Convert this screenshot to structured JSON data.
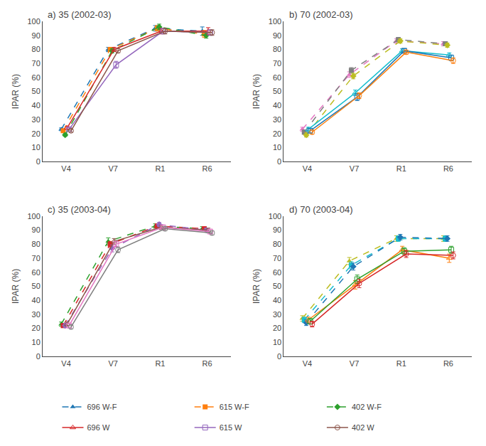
{
  "chart_data": [
    {
      "type": "line",
      "title": "a) 35 (2002-03)",
      "y_label": "IPAR (%)",
      "categories": [
        "V4",
        "V7",
        "R1",
        "R6"
      ],
      "ylim": [
        0,
        100
      ],
      "yticks": [
        0,
        10,
        20,
        30,
        40,
        50,
        60,
        70,
        80,
        90,
        100
      ],
      "grid": false,
      "legend": "bottom",
      "series": [
        {
          "name": "696 W-F",
          "values": [
            23,
            80,
            95,
            93
          ],
          "errors": [
            1.0,
            1.5,
            2.0,
            3.0
          ],
          "marker": "triangle-up",
          "line_style": "dashed"
        },
        {
          "name": "615 W-F",
          "values": [
            22,
            80,
            95,
            91
          ],
          "errors": [
            1.0,
            1.5,
            2.0,
            2.5
          ],
          "marker": "square",
          "line_style": "dashed"
        },
        {
          "name": "402 W-F",
          "values": [
            19,
            79,
            96,
            90
          ],
          "errors": [
            1.0,
            1.5,
            2.0,
            2.0
          ],
          "marker": "diamond",
          "line_style": "dashed"
        },
        {
          "name": "696 W",
          "values": [
            24,
            80,
            93,
            93
          ],
          "errors": [
            1.0,
            1.5,
            2.0,
            2.5
          ],
          "marker": "triangle-up-open",
          "line_style": "solid"
        },
        {
          "name": "615 W",
          "values": [
            23,
            69,
            93,
            92
          ],
          "errors": [
            1.0,
            2.5,
            2.0,
            2.0
          ],
          "marker": "square-open",
          "line_style": "solid"
        },
        {
          "name": "402 W",
          "values": [
            22,
            79,
            93,
            92
          ],
          "errors": [
            1.0,
            1.5,
            2.0,
            2.0
          ],
          "marker": "circle-open",
          "line_style": "solid"
        }
      ]
    },
    {
      "type": "line",
      "title": "b) 70 (2002-03)",
      "y_label": "IPAR (%)",
      "categories": [
        "V4",
        "V7",
        "R1",
        "R6"
      ],
      "ylim": [
        0,
        100
      ],
      "yticks": [
        0,
        10,
        20,
        30,
        40,
        50,
        60,
        70,
        80,
        90,
        100
      ],
      "grid": false,
      "legend": "bottom",
      "series": [
        {
          "name": "696 W-F",
          "values": [
            23,
            62,
            86,
            84
          ],
          "errors": [
            1.5,
            2.0,
            1.5,
            1.5
          ],
          "marker": "triangle-up",
          "line_style": "dashed"
        },
        {
          "name": "615 W-F",
          "values": [
            21,
            65,
            87,
            84
          ],
          "errors": [
            1.5,
            2.0,
            1.5,
            1.5
          ],
          "marker": "square",
          "line_style": "dashed"
        },
        {
          "name": "402 W-F",
          "values": [
            19,
            61,
            86,
            83
          ],
          "errors": [
            1.5,
            2.0,
            1.5,
            1.5
          ],
          "marker": "diamond",
          "line_style": "dashed"
        },
        {
          "name": "696 W",
          "values": [
            23,
            49,
            79,
            76
          ],
          "errors": [
            1.5,
            2.0,
            1.5,
            1.5
          ],
          "marker": "triangle-up-open",
          "line_style": "solid"
        },
        {
          "name": "615 W",
          "values": [
            22,
            46,
            79,
            74
          ],
          "errors": [
            1.5,
            2.5,
            1.5,
            2.0
          ],
          "marker": "square-open",
          "line_style": "solid"
        },
        {
          "name": "402 W",
          "values": [
            21,
            47,
            78,
            72
          ],
          "errors": [
            1.5,
            2.0,
            1.5,
            2.0
          ],
          "marker": "circle-open",
          "line_style": "solid"
        }
      ]
    },
    {
      "type": "line",
      "title": "c) 35 (2003-04)",
      "y_label": "IPAR (%)",
      "categories": [
        "V4",
        "V7",
        "R1",
        "R6"
      ],
      "ylim": [
        0,
        100
      ],
      "yticks": [
        0,
        10,
        20,
        30,
        40,
        50,
        60,
        70,
        80,
        90,
        100
      ],
      "grid": false,
      "legend": "bottom",
      "series": [
        {
          "name": "696 W-F",
          "values": [
            23,
            82,
            93,
            91
          ],
          "errors": [
            1.5,
            2.5,
            1.5,
            1.5
          ],
          "marker": "triangle-up",
          "line_style": "dashed"
        },
        {
          "name": "615 W-F",
          "values": [
            22,
            80,
            93,
            91
          ],
          "errors": [
            1.5,
            2.0,
            1.5,
            1.5
          ],
          "marker": "square",
          "line_style": "dashed"
        },
        {
          "name": "402 W-F",
          "values": [
            22,
            77,
            94,
            90
          ],
          "errors": [
            1.5,
            2.5,
            1.5,
            1.5
          ],
          "marker": "diamond",
          "line_style": "dashed"
        },
        {
          "name": "696 W",
          "values": [
            23,
            82,
            92,
            90
          ],
          "errors": [
            1.5,
            2.0,
            1.5,
            1.5
          ],
          "marker": "triangle-up-open",
          "line_style": "solid"
        },
        {
          "name": "615 W",
          "values": [
            22,
            80,
            92,
            89
          ],
          "errors": [
            1.5,
            2.0,
            1.5,
            1.5
          ],
          "marker": "square-open",
          "line_style": "solid"
        },
        {
          "name": "402 W",
          "values": [
            21,
            76,
            91,
            88
          ],
          "errors": [
            1.5,
            2.0,
            1.5,
            1.5
          ],
          "marker": "circle-open",
          "line_style": "solid"
        }
      ]
    },
    {
      "type": "line",
      "title": "d) 70 (2003-04)",
      "y_label": "IPAR (%)",
      "categories": [
        "V4",
        "V7",
        "R1",
        "R6"
      ],
      "ylim": [
        0,
        100
      ],
      "yticks": [
        0,
        10,
        20,
        30,
        40,
        50,
        60,
        70,
        80,
        90,
        100
      ],
      "grid": false,
      "legend": "bottom",
      "series": [
        {
          "name": "696 W-F",
          "values": [
            27,
            68,
            84,
            84
          ],
          "errors": [
            2.0,
            2.5,
            2.0,
            2.0
          ],
          "marker": "triangle-up",
          "line_style": "dashed"
        },
        {
          "name": "615 W-F",
          "values": [
            26,
            65,
            84,
            84
          ],
          "errors": [
            2.0,
            2.5,
            2.0,
            2.0
          ],
          "marker": "square",
          "line_style": "dashed"
        },
        {
          "name": "402 W-F",
          "values": [
            24,
            64,
            85,
            84
          ],
          "errors": [
            2.0,
            2.5,
            2.0,
            2.0
          ],
          "marker": "diamond",
          "line_style": "dashed"
        },
        {
          "name": "696 W",
          "values": [
            26,
            51,
            76,
            70
          ],
          "errors": [
            2.0,
            3.0,
            2.5,
            3.0
          ],
          "marker": "triangle-up-open",
          "line_style": "solid"
        },
        {
          "name": "615 W",
          "values": [
            25,
            55,
            75,
            76
          ],
          "errors": [
            2.0,
            3.0,
            2.5,
            2.5
          ],
          "marker": "square-open",
          "line_style": "solid"
        },
        {
          "name": "402 W",
          "values": [
            23,
            52,
            73,
            72
          ],
          "errors": [
            2.0,
            3.0,
            2.5,
            2.5
          ],
          "marker": "circle-open",
          "line_style": "solid"
        }
      ]
    }
  ]
}
